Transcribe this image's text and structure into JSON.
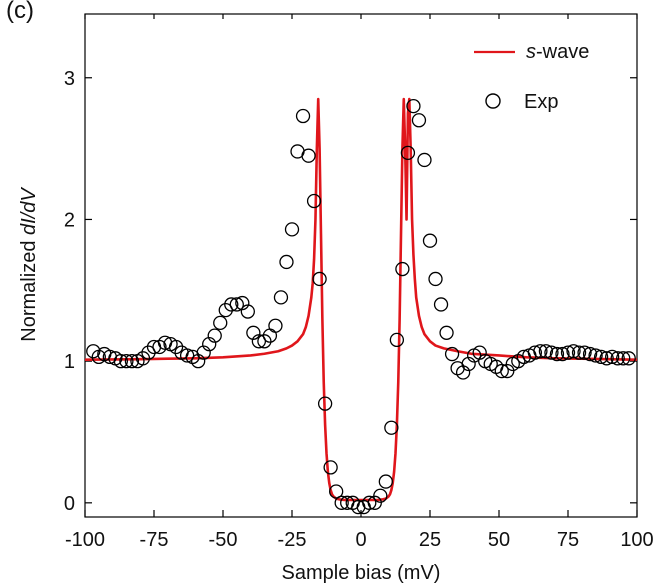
{
  "chart_data": {
    "type": "line",
    "panel_label": "(c)",
    "title": "",
    "xlabel": "Sample bias (mV)",
    "ylabel": {
      "prefix": "Normalized ",
      "italic": "dI/dV"
    },
    "xlim": [
      -100,
      100
    ],
    "ylim": [
      -0.1,
      3.45
    ],
    "xticks": [
      -100,
      -75,
      -50,
      -25,
      0,
      25,
      50,
      75,
      100
    ],
    "yticks": [
      0,
      1,
      2,
      3
    ],
    "grid": false,
    "legend_position": "top-right",
    "colors": {
      "fit": "#e0161b",
      "marker": "#000000",
      "axis": "#000000"
    },
    "series": [
      {
        "name": "s-wave",
        "legend_italic": "s",
        "legend_rest": "-wave",
        "kind": "line",
        "x": [
          -100,
          -90,
          -80,
          -70,
          -60,
          -50,
          -40,
          -35,
          -30,
          -27,
          -25,
          -23,
          -21,
          -20,
          -19,
          -18,
          -17.5,
          -17,
          -16.5,
          -16,
          -15.5,
          -15,
          -14.5,
          -14,
          -13.5,
          -13,
          -12.5,
          -12,
          -11.5,
          -11,
          -10.5,
          -10,
          -9,
          -8,
          -6,
          -3,
          0,
          3,
          6,
          8,
          9,
          10,
          10.5,
          11,
          11.5,
          12,
          12.5,
          13,
          13.5,
          14,
          14.5,
          15,
          15.5,
          16,
          16.5,
          17,
          17.5,
          18,
          18.5,
          19,
          19.5,
          20,
          21,
          22,
          23,
          25,
          27,
          30,
          35,
          40,
          50,
          60,
          70,
          80,
          90,
          100
        ],
        "values": [
          1.01,
          1.012,
          1.014,
          1.017,
          1.02,
          1.027,
          1.04,
          1.052,
          1.07,
          1.09,
          1.11,
          1.14,
          1.19,
          1.24,
          1.32,
          1.45,
          1.55,
          1.72,
          2.0,
          2.5,
          2.85,
          2.5,
          1.9,
          1.3,
          0.85,
          0.55,
          0.35,
          0.22,
          0.14,
          0.09,
          0.06,
          0.045,
          0.03,
          0.025,
          0.02,
          0.02,
          0.02,
          0.02,
          0.02,
          0.025,
          0.03,
          0.045,
          0.06,
          0.09,
          0.14,
          0.22,
          0.35,
          0.55,
          0.85,
          1.3,
          1.9,
          2.5,
          2.85,
          2.5,
          2.0,
          2.75,
          2.85,
          2.5,
          2.0,
          1.75,
          1.58,
          1.45,
          1.32,
          1.24,
          1.19,
          1.14,
          1.11,
          1.09,
          1.07,
          1.052,
          1.04,
          1.027,
          1.02,
          1.017,
          1.014,
          1.01
        ]
      },
      {
        "name": "Exp",
        "kind": "scatter",
        "x": [
          -97,
          -95,
          -93,
          -91,
          -89,
          -87,
          -85,
          -83,
          -81,
          -79,
          -77,
          -75,
          -73,
          -71,
          -69,
          -67,
          -65,
          -63,
          -61,
          -59,
          -57,
          -55,
          -53,
          -51,
          -49,
          -47,
          -45,
          -43,
          -41,
          -39,
          -37,
          -35,
          -33,
          -31,
          -29,
          -27,
          -25,
          -23,
          -21,
          -19,
          -17,
          -15,
          -13,
          -11,
          -9,
          -7,
          -5,
          -3,
          -1,
          1,
          3,
          5,
          7,
          9,
          11,
          13,
          15,
          17,
          19,
          21,
          23,
          25,
          27,
          29,
          31,
          33,
          35,
          37,
          39,
          41,
          43,
          45,
          47,
          49,
          51,
          53,
          55,
          57,
          59,
          61,
          63,
          65,
          67,
          69,
          71,
          73,
          75,
          77,
          79,
          81,
          83,
          85,
          87,
          89,
          91,
          93,
          95,
          97
        ],
        "values": [
          1.07,
          1.03,
          1.05,
          1.03,
          1.02,
          1.0,
          1.0,
          1.0,
          1.0,
          1.02,
          1.06,
          1.1,
          1.1,
          1.13,
          1.12,
          1.1,
          1.06,
          1.04,
          1.03,
          1.0,
          1.06,
          1.12,
          1.18,
          1.27,
          1.36,
          1.4,
          1.4,
          1.41,
          1.35,
          1.2,
          1.14,
          1.14,
          1.18,
          1.25,
          1.45,
          1.7,
          1.93,
          2.48,
          2.73,
          2.45,
          2.13,
          1.58,
          0.7,
          0.25,
          0.08,
          0.0,
          0.0,
          0.0,
          -0.03,
          -0.03,
          0.0,
          0.0,
          0.05,
          0.15,
          0.53,
          1.15,
          1.65,
          2.47,
          2.8,
          2.7,
          2.42,
          1.85,
          1.58,
          1.4,
          1.2,
          1.05,
          0.95,
          0.92,
          0.98,
          1.04,
          1.06,
          1.0,
          0.98,
          0.96,
          0.93,
          0.93,
          0.98,
          1.0,
          1.03,
          1.04,
          1.06,
          1.07,
          1.07,
          1.06,
          1.05,
          1.05,
          1.06,
          1.07,
          1.06,
          1.06,
          1.05,
          1.04,
          1.03,
          1.02,
          1.03,
          1.02,
          1.02,
          1.02
        ]
      }
    ]
  }
}
